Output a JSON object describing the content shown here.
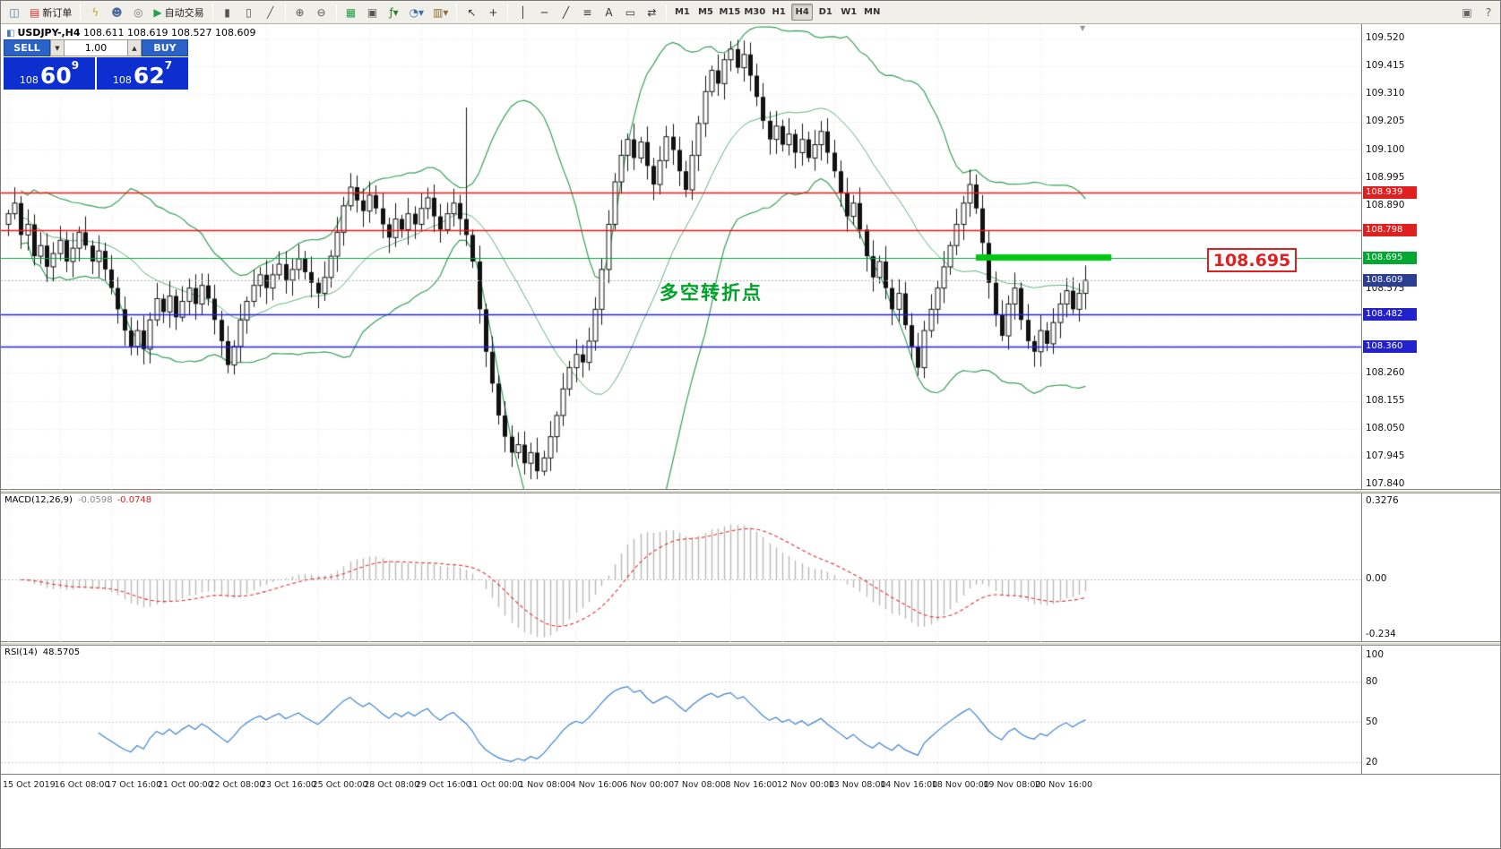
{
  "toolbar": {
    "buttons": [
      {
        "name": "charts-menu-icon",
        "glyph": "◫",
        "color": "#4e7ab5"
      },
      {
        "name": "new-order-button",
        "glyph": "▤",
        "color": "#d23333",
        "label": "新订单"
      },
      {
        "sep": true
      },
      {
        "name": "script-icon",
        "glyph": "ϟ",
        "color": "#c9a227"
      },
      {
        "name": "profiles-icon",
        "glyph": "☻",
        "color": "#49699b"
      },
      {
        "name": "data-window-icon",
        "glyph": "◎",
        "color": "#777777"
      },
      {
        "name": "autotrading-button",
        "glyph": "▶",
        "color": "#23a04a",
        "label": "自动交易"
      },
      {
        "sep": true
      },
      {
        "name": "bar-chart-button",
        "glyph": "▮",
        "color": "#555555"
      },
      {
        "name": "candlestick-chart-button",
        "glyph": "▯",
        "color": "#555555"
      },
      {
        "name": "line-chart-button",
        "glyph": "╱",
        "color": "#555555"
      },
      {
        "sep": true
      },
      {
        "name": "zoom-in-button",
        "glyph": "⊕",
        "color": "#555555"
      },
      {
        "name": "zoom-out-button",
        "glyph": "⊖",
        "color": "#555555"
      },
      {
        "sep": true
      },
      {
        "name": "tile-windows-button",
        "glyph": "▦",
        "color": "#23a04a"
      },
      {
        "name": "cascade-windows-button",
        "glyph": "▣",
        "color": "#555555"
      },
      {
        "name": "indicators-menu-button",
        "glyph": "ƒ▾",
        "color": "#2a7d2a"
      },
      {
        "name": "periods-menu-button",
        "glyph": "◔▾",
        "color": "#3a6fb0"
      },
      {
        "name": "templates-menu-button",
        "glyph": "▥▾",
        "color": "#8a6d3b"
      },
      {
        "sep": true
      },
      {
        "name": "cursor-button",
        "glyph": "↖",
        "color": "#333333"
      },
      {
        "name": "crosshair-button",
        "glyph": "+",
        "color": "#333333"
      },
      {
        "sep": true
      },
      {
        "name": "vertical-line-button",
        "glyph": "│",
        "color": "#333333"
      },
      {
        "name": "horizontal-line-button",
        "glyph": "─",
        "color": "#333333"
      },
      {
        "name": "trendline-button",
        "glyph": "╱",
        "color": "#333333"
      },
      {
        "name": "fibonacci-button",
        "glyph": "≡",
        "color": "#333333"
      },
      {
        "name": "text-button",
        "glyph": "A",
        "color": "#333333"
      },
      {
        "name": "text-label-button",
        "glyph": "▭",
        "color": "#333333"
      },
      {
        "name": "arrows-button",
        "glyph": "⇄",
        "color": "#333333"
      },
      {
        "sep": true
      }
    ],
    "timeframes": [
      "M1",
      "M5",
      "M15",
      "M30",
      "H1",
      "H4",
      "D1",
      "W1",
      "MN"
    ],
    "active_timeframe": "H4",
    "right_icons": [
      {
        "name": "chart-window-icon",
        "glyph": "▣",
        "color": "#666666"
      },
      {
        "name": "help-icon",
        "glyph": "?",
        "color": "#666666"
      }
    ]
  },
  "chart": {
    "symbol_title": "USDJPY-,H4",
    "ohlc_line": "108.611 108.619 108.527 108.609",
    "annotation": "多空转折点",
    "price_tag_big": "108.695",
    "trade_panel": {
      "sell_label": "SELL",
      "buy_label": "BUY",
      "volume": "1.00",
      "sell_price_small": "108",
      "sell_price_big": "60",
      "sell_price_sup": "9",
      "buy_price_small": "108",
      "buy_price_big": "62",
      "buy_price_sup": "7"
    },
    "levels": {
      "red": [
        108.939,
        108.798
      ],
      "green": 108.695,
      "blue": [
        108.482,
        108.36
      ],
      "current": 108.609,
      "thick_green": {
        "price": 108.695,
        "from_index": 150,
        "to_index": 171
      }
    },
    "scale": {
      "plain_labels": [
        "109.520",
        "109.415",
        "109.310",
        "109.205",
        "109.100",
        "108.995",
        "108.890",
        "108.575",
        "108.260",
        "108.155",
        "108.050",
        "107.945",
        "107.840"
      ],
      "tags": [
        {
          "text": "108.939",
          "color": "#e02020"
        },
        {
          "text": "108.798",
          "color": "#e02020"
        },
        {
          "text": "108.695",
          "color": "#00a830"
        },
        {
          "text": "108.609",
          "color": "#2c3e8f"
        },
        {
          "text": "108.482",
          "color": "#2222cc"
        },
        {
          "text": "108.360",
          "color": "#2222cc"
        }
      ]
    },
    "colors": {
      "grid": "#e3e3e3",
      "bollinger": "#35a05a",
      "red_line": "#f01414",
      "green_line": "#00a83c",
      "thick_green": "#00c814",
      "blue_line": "#2020dd",
      "current_line": "#a8b0bc",
      "candle": "#111111",
      "macd_hist": "#b8b8b8",
      "macd_signal": "#e03030",
      "rsi_line": "#3b82d0"
    }
  },
  "macd_panel": {
    "label": "MACD(12,26,9)",
    "value_main": "-0.0598",
    "value_signal": "-0.0748",
    "scale_top": "0.3276",
    "scale_zero": "0.00",
    "scale_bottom": "-0.234"
  },
  "rsi_panel": {
    "label": "RSI(14)",
    "value": "48.5705",
    "scale": [
      "100",
      "80",
      "50",
      "20"
    ]
  },
  "chart_data": {
    "type": "candlestick",
    "title": "USDJPY- H4",
    "ylim": [
      107.84,
      109.52
    ],
    "grid_step": 0.105,
    "x_labels": [
      "15 Oct 2019",
      "16 Oct 08:00",
      "17 Oct 16:00",
      "21 Oct 00:00",
      "22 Oct 08:00",
      "23 Oct 16:00",
      "25 Oct 00:00",
      "28 Oct 08:00",
      "29 Oct 16:00",
      "31 Oct 00:00",
      "1 Nov 08:00",
      "4 Nov 16:00",
      "6 Nov 00:00",
      "7 Nov 08:00",
      "8 Nov 16:00",
      "12 Nov 00:00",
      "13 Nov 08:00",
      "14 Nov 16:00",
      "18 Nov 00:00",
      "19 Nov 08:00",
      "20 Nov 16:00"
    ],
    "closes": [
      108.86,
      108.9,
      108.78,
      108.82,
      108.7,
      108.74,
      108.66,
      108.71,
      108.76,
      108.68,
      108.73,
      108.79,
      108.74,
      108.68,
      108.72,
      108.65,
      108.58,
      108.5,
      108.42,
      108.36,
      108.42,
      108.35,
      108.46,
      108.54,
      108.49,
      108.55,
      108.47,
      108.53,
      108.58,
      108.52,
      108.59,
      108.54,
      108.46,
      108.38,
      108.29,
      108.36,
      108.46,
      108.53,
      108.59,
      108.63,
      108.58,
      108.63,
      108.67,
      108.61,
      108.65,
      108.69,
      108.64,
      108.6,
      108.56,
      108.62,
      108.7,
      108.79,
      108.89,
      108.96,
      108.91,
      108.87,
      108.93,
      108.88,
      108.82,
      108.77,
      108.84,
      108.8,
      108.86,
      108.82,
      108.88,
      108.92,
      108.85,
      108.8,
      108.86,
      108.9,
      108.84,
      108.78,
      108.68,
      108.5,
      108.34,
      108.22,
      108.1,
      108.02,
      107.96,
      107.99,
      107.92,
      107.96,
      107.89,
      107.94,
      108.02,
      108.1,
      108.2,
      108.28,
      108.33,
      108.3,
      108.38,
      108.5,
      108.65,
      108.82,
      108.98,
      109.08,
      109.14,
      109.07,
      109.13,
      109.04,
      108.97,
      109.06,
      109.15,
      109.1,
      109.02,
      108.95,
      109.08,
      109.2,
      109.32,
      109.4,
      109.35,
      109.44,
      109.48,
      109.41,
      109.46,
      109.38,
      109.3,
      109.21,
      109.14,
      109.19,
      109.12,
      109.16,
      109.09,
      109.14,
      109.07,
      109.12,
      109.17,
      109.09,
      109.02,
      108.94,
      108.85,
      108.9,
      108.8,
      108.7,
      108.62,
      108.68,
      108.58,
      108.5,
      108.56,
      108.44,
      108.36,
      108.28,
      108.42,
      108.5,
      108.58,
      108.66,
      108.74,
      108.82,
      108.9,
      108.97,
      108.88,
      108.75,
      108.6,
      108.48,
      108.4,
      108.52,
      108.58,
      108.46,
      108.38,
      108.34,
      108.42,
      108.37,
      108.45,
      108.52,
      108.57,
      108.5,
      108.56,
      108.609
    ],
    "high_overrides": {
      "71": 109.26,
      "112": 109.51
    },
    "low_overrides": {
      "82": 107.86,
      "141": 108.25
    },
    "indicators": {
      "bollinger": {
        "period": 20,
        "deviation": 2
      },
      "macd": {
        "fast": 12,
        "slow": 26,
        "signal": 9
      },
      "rsi": {
        "period": 14
      }
    }
  }
}
